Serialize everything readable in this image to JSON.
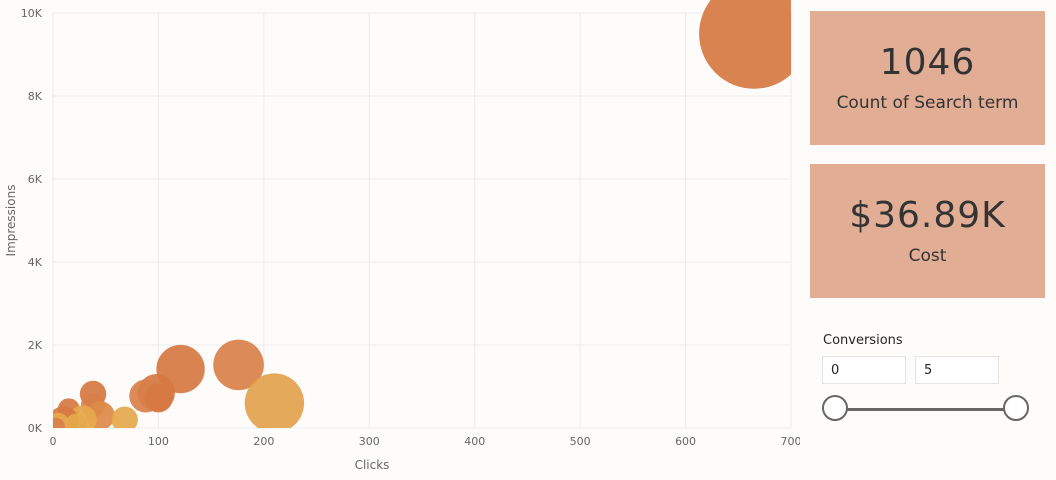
{
  "chart_data": {
    "type": "scatter",
    "xlabel": "Clicks",
    "ylabel": "Impressions",
    "xlim": [
      0,
      700
    ],
    "ylim": [
      0,
      10000
    ],
    "x_ticks": [
      "0",
      "100",
      "200",
      "300",
      "400",
      "500",
      "600",
      "700"
    ],
    "y_ticks": [
      "0K",
      "2K",
      "4K",
      "6K",
      "8K",
      "10K"
    ],
    "grid": true,
    "points": [
      {
        "x": 665,
        "y": 9500,
        "size": 5,
        "color": "#d67842"
      },
      {
        "x": 176,
        "y": 1520,
        "size": 2.3,
        "color": "#d9804a"
      },
      {
        "x": 121,
        "y": 1420,
        "size": 2.2,
        "color": "#d67842"
      },
      {
        "x": 210,
        "y": 600,
        "size": 2.7,
        "color": "#e2a24c"
      },
      {
        "x": 98,
        "y": 850,
        "size": 1.7,
        "color": "#d67842"
      },
      {
        "x": 88,
        "y": 770,
        "size": 1.5,
        "color": "#d9804a"
      },
      {
        "x": 100,
        "y": 720,
        "size": 1.3,
        "color": "#d67842"
      },
      {
        "x": 38,
        "y": 820,
        "size": 1.2,
        "color": "#d67842"
      },
      {
        "x": 38,
        "y": 550,
        "size": 1.1,
        "color": "#d9804a"
      },
      {
        "x": 45,
        "y": 300,
        "size": 1.3,
        "color": "#dd8a48"
      },
      {
        "x": 15,
        "y": 450,
        "size": 1.0,
        "color": "#d67842"
      },
      {
        "x": 68,
        "y": 200,
        "size": 1.2,
        "color": "#e6a84c"
      },
      {
        "x": 28,
        "y": 200,
        "size": 1.3,
        "color": "#e6a84c"
      },
      {
        "x": 10,
        "y": 150,
        "size": 1.4,
        "color": "#d67842"
      },
      {
        "x": 5,
        "y": 100,
        "size": 1.0,
        "color": "#e6a84c"
      },
      {
        "x": 22,
        "y": 80,
        "size": 1.0,
        "color": "#e6a84c"
      },
      {
        "x": 3,
        "y": 30,
        "size": 0.8,
        "color": "#d9804a"
      }
    ]
  },
  "cards": {
    "count": {
      "value": "1046",
      "label": "Count of Search term"
    },
    "cost": {
      "value": "$36.89K",
      "label": "Cost"
    }
  },
  "slicer": {
    "title": "Conversions",
    "min_value": "0",
    "max_value": "5"
  },
  "colors": {
    "card_bg": "#e2ad95",
    "bubble_dark": "#d67842",
    "bubble_light": "#e6a84c"
  }
}
